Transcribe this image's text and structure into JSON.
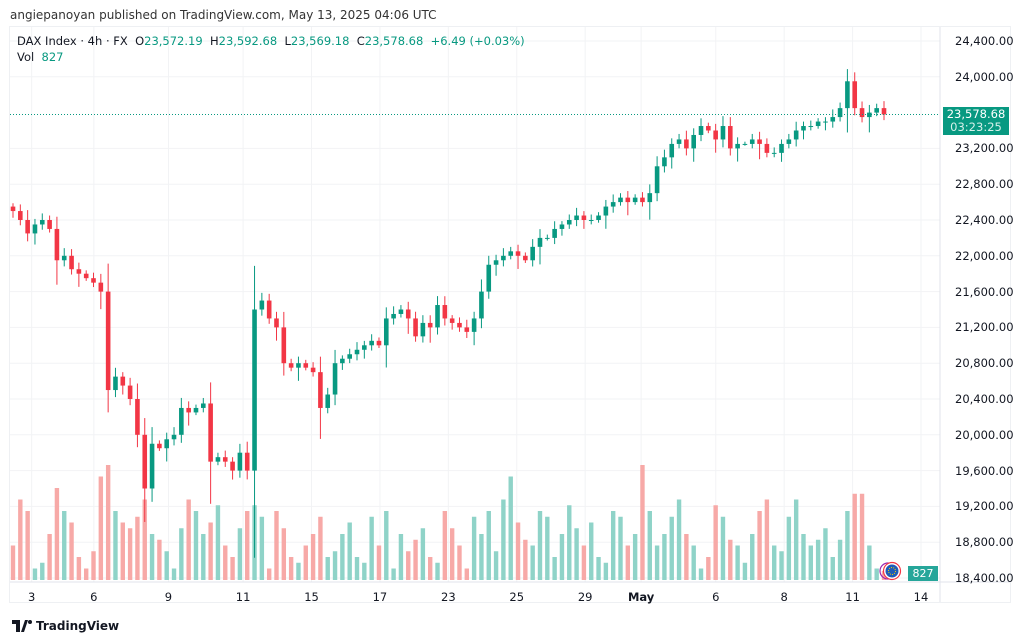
{
  "published": "angiepanoyan published on TradingView.com, May 13, 2025 04:06 UTC",
  "legend": {
    "symbol": "DAX Index · 4h · FX",
    "o_label": "O",
    "open": "23,572.19",
    "h_label": "H",
    "high": "23,592.68",
    "l_label": "L",
    "low": "23,569.18",
    "c_label": "C",
    "close": "23,578.68",
    "change": "+6.49 (+0.03%)",
    "vol_label": "Vol",
    "vol": "827"
  },
  "price_label": {
    "price": "23,578.68",
    "countdown": "03:23:25"
  },
  "volume_label": "827",
  "footer": {
    "brand": "TradingView"
  },
  "colors": {
    "up": "#089981",
    "down": "#f23645",
    "vol_up": "#8fd3c8",
    "vol_down": "#f7a9a7"
  },
  "chart_data": {
    "type": "candlestick",
    "title": "DAX Index · 4h · FX",
    "y_ticks": [
      "24,400.00",
      "24,000.00",
      "23,200.00",
      "22,800.00",
      "22,400.00",
      "22,000.00",
      "21,600.00",
      "21,200.00",
      "20,800.00",
      "20,400.00",
      "20,000.00",
      "19,600.00",
      "19,200.00",
      "18,800.00",
      "18,400.00"
    ],
    "y_tick_values": [
      24400,
      24000,
      23200,
      22800,
      22400,
      22000,
      21600,
      21200,
      20800,
      20400,
      20000,
      19600,
      19200,
      18800,
      18400
    ],
    "ylim": [
      18400,
      24400
    ],
    "x_ticks": [
      "3",
      "6",
      "9",
      "11",
      "15",
      "17",
      "23",
      "25",
      "29",
      "May",
      "6",
      "8",
      "11",
      "14"
    ],
    "x_tick_index": [
      3,
      13,
      25,
      37,
      48,
      59,
      70,
      81,
      92,
      101,
      113,
      124,
      135,
      146
    ],
    "first_open": 22550,
    "closes": [
      22500,
      22400,
      22250,
      22350,
      22400,
      22300,
      21950,
      22000,
      21850,
      21800,
      21750,
      21700,
      21600,
      20500,
      20650,
      20550,
      20400,
      20000,
      19400,
      19900,
      19850,
      19950,
      20000,
      20300,
      20250,
      20300,
      20350,
      19700,
      19750,
      19700,
      19600,
      19800,
      19600,
      21400,
      21500,
      21300,
      21200,
      20800,
      20750,
      20800,
      20750,
      20700,
      20300,
      20450,
      20800,
      20850,
      20900,
      20950,
      21000,
      21050,
      21000,
      21300,
      21350,
      21400,
      21300,
      21100,
      21250,
      21200,
      21450,
      21300,
      21250,
      21200,
      21150,
      21300,
      21600,
      21900,
      21950,
      22000,
      22050,
      22000,
      21950,
      22100,
      22200,
      22200,
      22300,
      22350,
      22400,
      22450,
      22400,
      22400,
      22450,
      22550,
      22600,
      22650,
      22600,
      22650,
      22600,
      22700,
      23000,
      23100,
      23250,
      23300,
      23200,
      23350,
      23450,
      23400,
      23300,
      23450,
      23200,
      23250,
      23250,
      23300,
      23250,
      23150,
      23150,
      23250,
      23300,
      23400,
      23450,
      23450,
      23500,
      23500,
      23550,
      23650,
      23950,
      23650,
      23550,
      23600,
      23650,
      23579
    ],
    "volumes": [
      30,
      70,
      60,
      10,
      15,
      40,
      80,
      60,
      50,
      20,
      10,
      25,
      90,
      100,
      60,
      50,
      45,
      55,
      70,
      40,
      35,
      25,
      10,
      45,
      70,
      60,
      40,
      50,
      65,
      30,
      20,
      45,
      60,
      65,
      55,
      10,
      60,
      45,
      20,
      15,
      30,
      40,
      55,
      20,
      25,
      40,
      50,
      20,
      15,
      55,
      30,
      60,
      10,
      40,
      25,
      35,
      45,
      20,
      15,
      60,
      45,
      30,
      10,
      55,
      40,
      60,
      25,
      70,
      90,
      50,
      35,
      30,
      60,
      55,
      20,
      40,
      65,
      45,
      30,
      50,
      20,
      15,
      60,
      55,
      30,
      40,
      100,
      60,
      30,
      40,
      55,
      70,
      40,
      30,
      10,
      20,
      65,
      55,
      35,
      30,
      15,
      40,
      60,
      70,
      30,
      25,
      55,
      70,
      40,
      30,
      35,
      45,
      20,
      35,
      60,
      75,
      75,
      30,
      10,
      8
    ]
  }
}
